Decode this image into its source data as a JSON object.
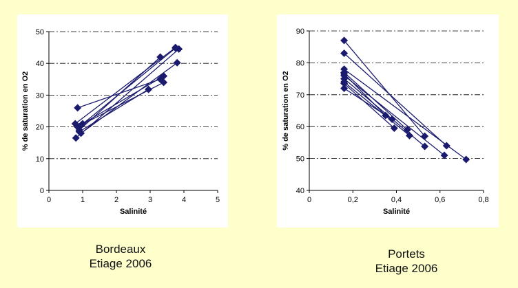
{
  "captions": {
    "left": {
      "line1": "Bordeaux",
      "line2": "Etiage 2006"
    },
    "right": {
      "line1": "Portets",
      "line2": "Etiage 2006"
    }
  },
  "colors": {
    "background": "#ffffcc",
    "panel": "#ffffff",
    "marker": "#1a1a6e",
    "gridline": "#000000"
  },
  "chart_data": [
    {
      "type": "scatter",
      "xlabel": "Salinité",
      "ylabel": "% de saturation en O2",
      "xlim": [
        0,
        5
      ],
      "ylim": [
        0,
        50
      ],
      "xticks": [
        "0",
        "1",
        "2",
        "3",
        "4",
        "5"
      ],
      "yticks": [
        "0",
        "10",
        "20",
        "30",
        "40",
        "50"
      ],
      "grid": "horizontal dash-dot",
      "segments": [
        [
          [
            0.85,
            26
          ],
          [
            3.3,
            35
          ]
        ],
        [
          [
            0.78,
            21
          ],
          [
            3.75,
            45
          ]
        ],
        [
          [
            0.8,
            16.5
          ],
          [
            3.85,
            44.5
          ]
        ],
        [
          [
            0.9,
            19
          ],
          [
            3.3,
            42
          ]
        ],
        [
          [
            0.95,
            18
          ],
          [
            3.8,
            40.2
          ]
        ],
        [
          [
            1.0,
            21
          ],
          [
            3.4,
            36
          ]
        ],
        [
          [
            0.85,
            20
          ],
          [
            3.4,
            34
          ]
        ],
        [
          [
            0.9,
            18.5
          ],
          [
            2.95,
            31.8
          ]
        ],
        [
          [
            0.95,
            20.5
          ],
          [
            3.75,
            44.8
          ]
        ]
      ]
    },
    {
      "type": "scatter",
      "xlabel": "Salinité",
      "ylabel": "% de saturation en O2",
      "xlim": [
        0,
        0.8
      ],
      "ylim": [
        40,
        90
      ],
      "xticks": [
        "0",
        "0,2",
        "0,4",
        "0,6",
        "0,8"
      ],
      "yticks": [
        "40",
        "50",
        "60",
        "70",
        "80",
        "90"
      ],
      "grid": "horizontal dash-dot",
      "segments": [
        [
          [
            0.16,
            87
          ],
          [
            0.53,
            57
          ]
        ],
        [
          [
            0.16,
            83
          ],
          [
            0.63,
            54
          ]
        ],
        [
          [
            0.16,
            78
          ],
          [
            0.72,
            49.7
          ]
        ],
        [
          [
            0.16,
            77
          ],
          [
            0.45,
            59
          ]
        ],
        [
          [
            0.16,
            76
          ],
          [
            0.62,
            51
          ]
        ],
        [
          [
            0.16,
            75
          ],
          [
            0.53,
            53.8
          ]
        ],
        [
          [
            0.16,
            74
          ],
          [
            0.46,
            57.2
          ]
        ],
        [
          [
            0.16,
            73.5
          ],
          [
            0.39,
            59.5
          ]
        ],
        [
          [
            0.16,
            72
          ],
          [
            0.38,
            62.3
          ]
        ],
        [
          [
            0.16,
            76.5
          ],
          [
            0.35,
            63.5
          ]
        ]
      ]
    }
  ]
}
